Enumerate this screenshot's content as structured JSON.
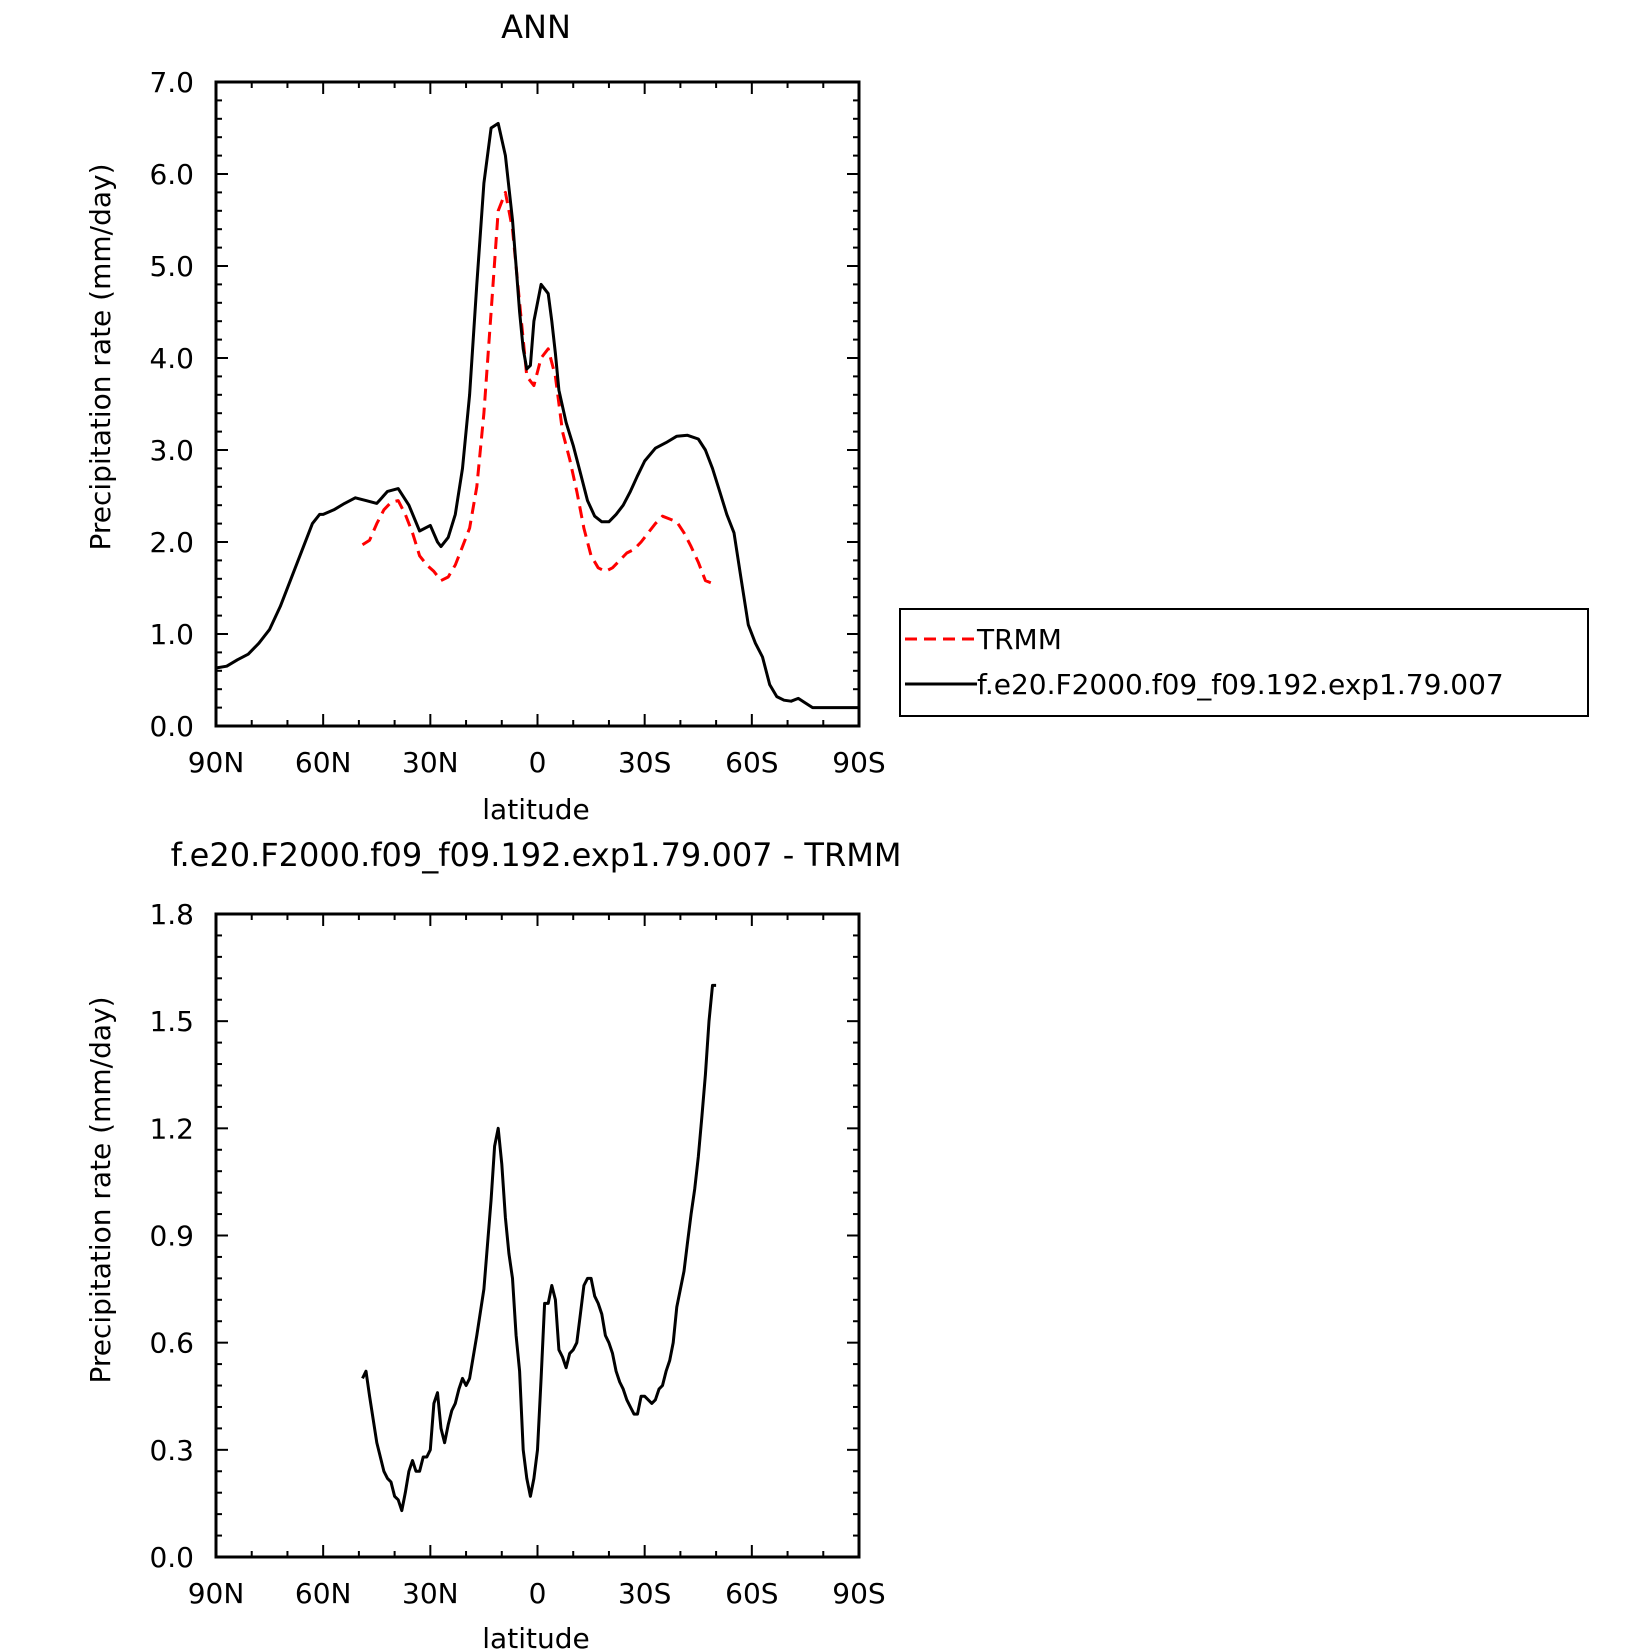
{
  "chart_data": [
    {
      "type": "line",
      "title": "ANN",
      "xlabel": "latitude",
      "ylabel": "Precipitation rate (mm/day)",
      "xlim": [
        90,
        -90
      ],
      "ylim": [
        0,
        7
      ],
      "x_ticks": [
        90,
        60,
        30,
        0,
        -30,
        -60,
        -90
      ],
      "x_tick_labels": [
        "90N",
        "60N",
        "30N",
        "0",
        "30S",
        "60S",
        "90S"
      ],
      "y_ticks": [
        0,
        1,
        2,
        3,
        4,
        5,
        6,
        7
      ],
      "y_tick_labels": [
        "0.0",
        "1.0",
        "2.0",
        "3.0",
        "4.0",
        "5.0",
        "6.0",
        "7.0"
      ],
      "grid": false,
      "legend_position": "right",
      "series": [
        {
          "name": "TRMM",
          "color": "#ff0000",
          "dash": "dashed",
          "x": [
            49,
            47,
            45,
            43,
            41,
            39,
            37,
            35,
            33,
            31,
            29,
            27,
            25,
            23,
            21,
            19,
            17,
            15,
            13,
            11,
            9,
            7,
            5,
            3,
            1,
            -1,
            -3,
            -5,
            -7,
            -9,
            -11,
            -13,
            -15,
            -17,
            -19,
            -21,
            -23,
            -25,
            -27,
            -29,
            -31,
            -33,
            -35,
            -37,
            -39,
            -41,
            -43,
            -45,
            -47,
            -49
          ],
          "y": [
            1.97,
            2.02,
            2.2,
            2.35,
            2.43,
            2.45,
            2.3,
            2.1,
            1.85,
            1.75,
            1.68,
            1.58,
            1.62,
            1.75,
            1.95,
            2.15,
            2.6,
            3.4,
            4.5,
            5.6,
            5.8,
            5.4,
            4.6,
            3.8,
            3.7,
            4.0,
            4.1,
            3.8,
            3.2,
            2.9,
            2.55,
            2.15,
            1.85,
            1.72,
            1.68,
            1.72,
            1.8,
            1.88,
            1.92,
            2.0,
            2.1,
            2.2,
            2.28,
            2.25,
            2.22,
            2.1,
            1.95,
            1.78,
            1.58,
            1.55
          ]
        },
        {
          "name": "f.e20.F2000.f09_f09.192.exp1.79.007",
          "color": "#000000",
          "dash": "solid",
          "x": [
            90,
            87,
            84,
            81,
            78,
            75,
            72,
            69,
            66,
            63,
            61,
            60,
            57,
            54,
            51,
            48,
            45,
            42,
            39,
            36,
            33,
            30,
            28,
            27,
            25,
            23,
            21,
            19,
            17,
            15,
            13,
            11,
            9,
            7,
            6,
            5,
            4,
            3,
            2,
            1,
            -1,
            -3,
            -4,
            -5,
            -6,
            -8,
            -10,
            -12,
            -14,
            -16,
            -18,
            -20,
            -22,
            -24,
            -26,
            -28,
            -30,
            -33,
            -36,
            -39,
            -42,
            -45,
            -47,
            -49,
            -51,
            -53,
            -55,
            -57,
            -59,
            -61,
            -63,
            -65,
            -67,
            -69,
            -71,
            -73,
            -75,
            -77,
            -79,
            -81,
            -83,
            -85,
            -87,
            -90
          ],
          "y": [
            0.63,
            0.65,
            0.72,
            0.78,
            0.9,
            1.05,
            1.3,
            1.6,
            1.9,
            2.2,
            2.3,
            2.3,
            2.35,
            2.42,
            2.48,
            2.45,
            2.42,
            2.55,
            2.58,
            2.4,
            2.12,
            2.18,
            2.0,
            1.95,
            2.05,
            2.3,
            2.8,
            3.6,
            4.8,
            5.9,
            6.5,
            6.55,
            6.2,
            5.5,
            5.0,
            4.5,
            4.1,
            3.88,
            3.92,
            4.4,
            4.8,
            4.7,
            4.4,
            4.05,
            3.65,
            3.3,
            3.05,
            2.75,
            2.45,
            2.28,
            2.22,
            2.22,
            2.3,
            2.4,
            2.55,
            2.72,
            2.88,
            3.02,
            3.08,
            3.15,
            3.16,
            3.12,
            3.0,
            2.8,
            2.55,
            2.3,
            2.1,
            1.6,
            1.1,
            0.9,
            0.75,
            0.45,
            0.32,
            0.28,
            0.27,
            0.3,
            0.25,
            0.2,
            0.2,
            0.2,
            0.2,
            0.2,
            0.2,
            0.2
          ]
        }
      ]
    },
    {
      "type": "line",
      "title": "f.e20.F2000.f09_f09.192.exp1.79.007 - TRMM",
      "xlabel": "latitude",
      "ylabel": "Precipitation rate (mm/day)",
      "xlim": [
        90,
        -90
      ],
      "ylim": [
        0,
        1.8
      ],
      "x_ticks": [
        90,
        60,
        30,
        0,
        -30,
        -60,
        -90
      ],
      "x_tick_labels": [
        "90N",
        "60N",
        "30N",
        "0",
        "30S",
        "60S",
        "90S"
      ],
      "y_ticks": [
        0,
        0.3,
        0.6,
        0.9,
        1.2,
        1.5,
        1.8
      ],
      "y_tick_labels": [
        "0.0",
        "0.3",
        "0.6",
        "0.9",
        "1.2",
        "1.5",
        "1.8"
      ],
      "grid": false,
      "series": [
        {
          "color": "#000000",
          "dash": "solid",
          "x": [
            49,
            48,
            47,
            45,
            43,
            42,
            41,
            40,
            39,
            38,
            37,
            36,
            35,
            34,
            33,
            32,
            31,
            30,
            29,
            28,
            27,
            26,
            25,
            24,
            23,
            22,
            21,
            20,
            19,
            17,
            15,
            13,
            12,
            11,
            10,
            9,
            8,
            7,
            6,
            5,
            4,
            3,
            2,
            1,
            0,
            -1,
            -2,
            -3,
            -4,
            -5,
            -6,
            -7,
            -8,
            -9,
            -10,
            -11,
            -12,
            -13,
            -14,
            -15,
            -16,
            -17,
            -18,
            -19,
            -20,
            -21,
            -22,
            -23,
            -24,
            -25,
            -26,
            -27,
            -28,
            -29,
            -30,
            -31,
            -32,
            -33,
            -34,
            -35,
            -36,
            -37,
            -38,
            -39,
            -40,
            -41,
            -42,
            -43,
            -44,
            -45,
            -46,
            -47,
            -48,
            -49,
            -50
          ],
          "y": [
            0.5,
            0.52,
            0.45,
            0.32,
            0.24,
            0.22,
            0.21,
            0.17,
            0.16,
            0.13,
            0.18,
            0.24,
            0.27,
            0.24,
            0.24,
            0.28,
            0.28,
            0.3,
            0.43,
            0.46,
            0.36,
            0.32,
            0.37,
            0.41,
            0.43,
            0.47,
            0.5,
            0.48,
            0.5,
            0.62,
            0.75,
            1.0,
            1.15,
            1.2,
            1.1,
            0.95,
            0.85,
            0.78,
            0.62,
            0.52,
            0.3,
            0.22,
            0.17,
            0.22,
            0.3,
            0.5,
            0.71,
            0.71,
            0.76,
            0.72,
            0.58,
            0.56,
            0.53,
            0.57,
            0.58,
            0.6,
            0.68,
            0.76,
            0.78,
            0.78,
            0.73,
            0.71,
            0.68,
            0.62,
            0.6,
            0.57,
            0.52,
            0.49,
            0.47,
            0.44,
            0.42,
            0.4,
            0.4,
            0.45,
            0.45,
            0.44,
            0.43,
            0.44,
            0.47,
            0.48,
            0.52,
            0.55,
            0.6,
            0.7,
            0.75,
            0.8,
            0.88,
            0.96,
            1.03,
            1.12,
            1.23,
            1.35,
            1.5,
            1.6,
            1.6
          ]
        }
      ]
    }
  ]
}
